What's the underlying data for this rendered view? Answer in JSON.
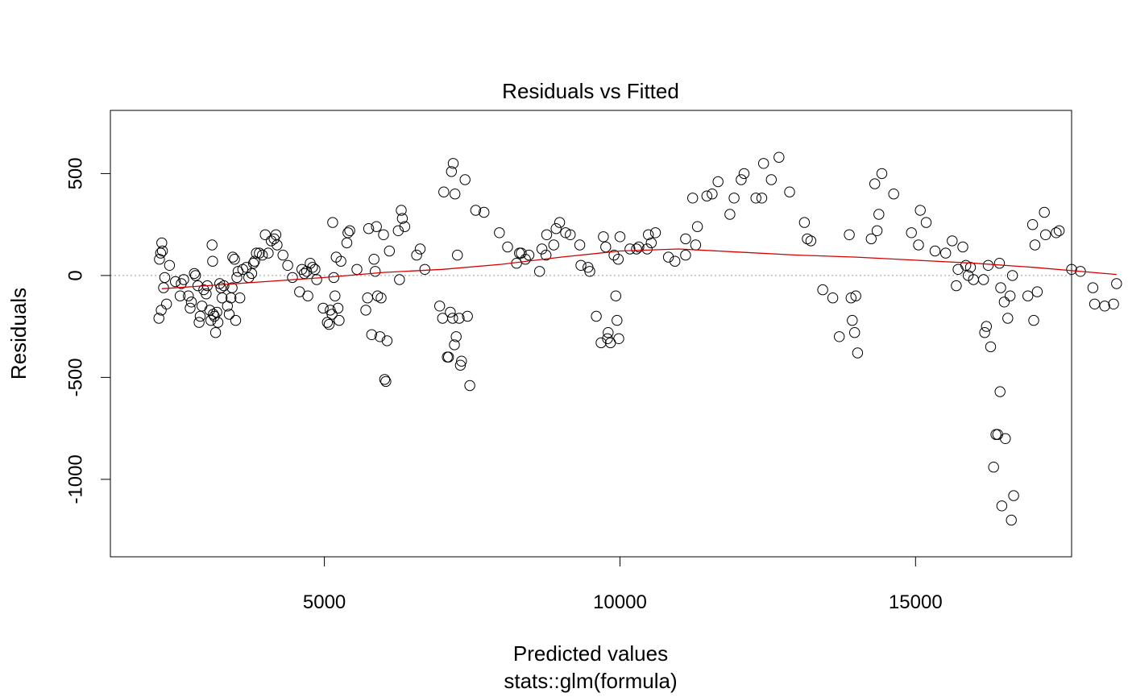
{
  "chart_data": {
    "type": "scatter",
    "title": "Residuals vs Fitted",
    "xlabel": "Predicted values",
    "subtitle": "stats::glm(formula)",
    "ylabel": "Residuals",
    "xlim": [
      1380,
      17640
    ],
    "ylim": [
      -1380,
      810
    ],
    "xticks": [
      5000,
      10000,
      15000
    ],
    "xtick_labels": [
      "5000",
      "10000",
      "15000"
    ],
    "yticks": [
      500,
      0,
      -500,
      -1000
    ],
    "ytick_labels": [
      "500",
      "0",
      "-500",
      "-1000"
    ],
    "reference_line": {
      "y": 0,
      "style": "dotted",
      "color": "#999999"
    },
    "point_color": "#000000",
    "smooth_color": "#d40000",
    "points": [
      [
        2250,
        160
      ],
      [
        2230,
        110
      ],
      [
        2210,
        80
      ],
      [
        2260,
        120
      ],
      [
        2300,
        -10
      ],
      [
        2330,
        -140
      ],
      [
        2280,
        -60
      ],
      [
        2240,
        -170
      ],
      [
        2200,
        -210
      ],
      [
        2380,
        50
      ],
      [
        2480,
        -30
      ],
      [
        2560,
        -100
      ],
      [
        2580,
        -40
      ],
      [
        2620,
        -20
      ],
      [
        2700,
        -100
      ],
      [
        2730,
        -160
      ],
      [
        2750,
        -130
      ],
      [
        2800,
        10
      ],
      [
        2820,
        0
      ],
      [
        2860,
        -50
      ],
      [
        2880,
        -230
      ],
      [
        2900,
        -200
      ],
      [
        2930,
        -150
      ],
      [
        2960,
        -70
      ],
      [
        3000,
        -90
      ],
      [
        3020,
        -50
      ],
      [
        3060,
        -170
      ],
      [
        3080,
        -220
      ],
      [
        3100,
        150
      ],
      [
        3110,
        70
      ],
      [
        3120,
        -190
      ],
      [
        3140,
        -200
      ],
      [
        3160,
        -280
      ],
      [
        3180,
        -180
      ],
      [
        3200,
        -230
      ],
      [
        3230,
        -40
      ],
      [
        3250,
        -60
      ],
      [
        3270,
        -110
      ],
      [
        3300,
        -50
      ],
      [
        3360,
        -150
      ],
      [
        3390,
        -190
      ],
      [
        3420,
        -110
      ],
      [
        3440,
        -60
      ],
      [
        3450,
        90
      ],
      [
        3480,
        80
      ],
      [
        3500,
        -220
      ],
      [
        3520,
        -10
      ],
      [
        3540,
        20
      ],
      [
        3570,
        -110
      ],
      [
        3620,
        30
      ],
      [
        3680,
        40
      ],
      [
        3720,
        -10
      ],
      [
        3770,
        10
      ],
      [
        3800,
        60
      ],
      [
        3820,
        70
      ],
      [
        3850,
        110
      ],
      [
        3900,
        110
      ],
      [
        3950,
        100
      ],
      [
        4000,
        200
      ],
      [
        4050,
        110
      ],
      [
        4100,
        170
      ],
      [
        4150,
        180
      ],
      [
        4180,
        200
      ],
      [
        4200,
        150
      ],
      [
        4300,
        100
      ],
      [
        4380,
        50
      ],
      [
        4460,
        -10
      ],
      [
        4580,
        -80
      ],
      [
        4620,
        30
      ],
      [
        4660,
        10
      ],
      [
        4700,
        20
      ],
      [
        4720,
        -100
      ],
      [
        4760,
        60
      ],
      [
        4800,
        40
      ],
      [
        4840,
        30
      ],
      [
        4870,
        -20
      ],
      [
        4980,
        -160
      ],
      [
        5050,
        -230
      ],
      [
        5080,
        -240
      ],
      [
        5100,
        -170
      ],
      [
        5130,
        -190
      ],
      [
        5140,
        260
      ],
      [
        5160,
        -10
      ],
      [
        5180,
        -100
      ],
      [
        5200,
        90
      ],
      [
        5230,
        -160
      ],
      [
        5250,
        -220
      ],
      [
        5280,
        70
      ],
      [
        5380,
        160
      ],
      [
        5400,
        210
      ],
      [
        5430,
        220
      ],
      [
        5550,
        30
      ],
      [
        5700,
        -170
      ],
      [
        5730,
        -110
      ],
      [
        5750,
        230
      ],
      [
        5800,
        -290
      ],
      [
        5840,
        80
      ],
      [
        5860,
        20
      ],
      [
        5880,
        240
      ],
      [
        5900,
        -100
      ],
      [
        5940,
        -300
      ],
      [
        5960,
        -110
      ],
      [
        6000,
        200
      ],
      [
        6020,
        -510
      ],
      [
        6040,
        -520
      ],
      [
        6060,
        -320
      ],
      [
        6100,
        120
      ],
      [
        6250,
        220
      ],
      [
        6270,
        -20
      ],
      [
        6300,
        320
      ],
      [
        6320,
        280
      ],
      [
        6360,
        240
      ],
      [
        6560,
        100
      ],
      [
        6620,
        130
      ],
      [
        6700,
        30
      ],
      [
        6950,
        -150
      ],
      [
        7000,
        -210
      ],
      [
        7020,
        410
      ],
      [
        7080,
        -400
      ],
      [
        7100,
        -400
      ],
      [
        7130,
        -180
      ],
      [
        7150,
        510
      ],
      [
        7170,
        -210
      ],
      [
        7180,
        550
      ],
      [
        7200,
        -340
      ],
      [
        7210,
        400
      ],
      [
        7230,
        -300
      ],
      [
        7250,
        100
      ],
      [
        7280,
        -210
      ],
      [
        7300,
        -440
      ],
      [
        7320,
        -420
      ],
      [
        7380,
        470
      ],
      [
        7420,
        -200
      ],
      [
        7460,
        -540
      ],
      [
        7560,
        320
      ],
      [
        7700,
        310
      ],
      [
        7960,
        210
      ],
      [
        8100,
        140
      ],
      [
        8250,
        60
      ],
      [
        8300,
        110
      ],
      [
        8330,
        110
      ],
      [
        8400,
        80
      ],
      [
        8460,
        100
      ],
      [
        8640,
        20
      ],
      [
        8680,
        130
      ],
      [
        8750,
        100
      ],
      [
        8760,
        200
      ],
      [
        8880,
        150
      ],
      [
        8920,
        230
      ],
      [
        8980,
        260
      ],
      [
        9080,
        210
      ],
      [
        9160,
        200
      ],
      [
        9320,
        150
      ],
      [
        9340,
        50
      ],
      [
        9460,
        40
      ],
      [
        9490,
        20
      ],
      [
        9600,
        -200
      ],
      [
        9680,
        -330
      ],
      [
        9720,
        190
      ],
      [
        9760,
        140
      ],
      [
        9790,
        -310
      ],
      [
        9800,
        -280
      ],
      [
        9840,
        -330
      ],
      [
        9900,
        100
      ],
      [
        9930,
        -100
      ],
      [
        9950,
        -220
      ],
      [
        9970,
        80
      ],
      [
        9980,
        -310
      ],
      [
        10000,
        190
      ],
      [
        10170,
        130
      ],
      [
        10280,
        130
      ],
      [
        10320,
        140
      ],
      [
        10460,
        130
      ],
      [
        10480,
        200
      ],
      [
        10530,
        160
      ],
      [
        10600,
        210
      ],
      [
        10820,
        90
      ],
      [
        10930,
        70
      ],
      [
        11110,
        180
      ],
      [
        11110,
        100
      ],
      [
        11230,
        380
      ],
      [
        11280,
        150
      ],
      [
        11310,
        240
      ],
      [
        11470,
        390
      ],
      [
        11560,
        400
      ],
      [
        11660,
        460
      ],
      [
        11860,
        300
      ],
      [
        11930,
        380
      ],
      [
        12050,
        470
      ],
      [
        12100,
        500
      ],
      [
        12300,
        380
      ],
      [
        12400,
        380
      ],
      [
        12430,
        550
      ],
      [
        12560,
        470
      ],
      [
        12690,
        580
      ],
      [
        12870,
        410
      ],
      [
        13120,
        260
      ],
      [
        13170,
        180
      ],
      [
        13230,
        170
      ],
      [
        13430,
        -70
      ],
      [
        13600,
        -110
      ],
      [
        13710,
        -300
      ],
      [
        13880,
        200
      ],
      [
        13910,
        -110
      ],
      [
        13930,
        -220
      ],
      [
        13970,
        -280
      ],
      [
        13990,
        -100
      ],
      [
        14020,
        -380
      ],
      [
        14250,
        180
      ],
      [
        14310,
        450
      ],
      [
        14350,
        220
      ],
      [
        14380,
        300
      ],
      [
        14430,
        500
      ],
      [
        14630,
        400
      ],
      [
        14930,
        210
      ],
      [
        15050,
        150
      ],
      [
        15080,
        320
      ],
      [
        15180,
        260
      ],
      [
        15330,
        120
      ],
      [
        15510,
        110
      ],
      [
        15620,
        170
      ],
      [
        15690,
        -50
      ],
      [
        15720,
        30
      ],
      [
        15800,
        140
      ],
      [
        15850,
        50
      ],
      [
        15890,
        0
      ],
      [
        15930,
        40
      ],
      [
        15980,
        -20
      ],
      [
        16150,
        -20
      ],
      [
        16170,
        -280
      ],
      [
        16200,
        -250
      ],
      [
        16230,
        50
      ],
      [
        16270,
        -350
      ],
      [
        16320,
        -940
      ],
      [
        16360,
        -780
      ],
      [
        16390,
        -780
      ],
      [
        16420,
        60
      ],
      [
        16430,
        -570
      ],
      [
        16440,
        -60
      ],
      [
        16460,
        -1130
      ],
      [
        16500,
        -130
      ],
      [
        16520,
        -800
      ],
      [
        16560,
        -210
      ],
      [
        16600,
        -100
      ],
      [
        16620,
        -1200
      ],
      [
        16640,
        0
      ],
      [
        16660,
        -1080
      ],
      [
        16900,
        -100
      ],
      [
        16980,
        250
      ],
      [
        17000,
        -220
      ],
      [
        17020,
        150
      ],
      [
        17060,
        -80
      ],
      [
        17180,
        310
      ],
      [
        17200,
        200
      ],
      [
        17380,
        210
      ],
      [
        17430,
        220
      ],
      [
        17640,
        30
      ],
      [
        17790,
        20
      ],
      [
        18000,
        -60
      ],
      [
        18030,
        -140
      ],
      [
        18200,
        -150
      ],
      [
        18350,
        -140
      ],
      [
        18400,
        -40
      ]
    ],
    "smooth": [
      [
        2250,
        -65
      ],
      [
        3000,
        -50
      ],
      [
        4000,
        -30
      ],
      [
        5000,
        -10
      ],
      [
        6000,
        15
      ],
      [
        7000,
        30
      ],
      [
        8000,
        55
      ],
      [
        9000,
        90
      ],
      [
        10000,
        120
      ],
      [
        11000,
        130
      ],
      [
        12000,
        115
      ],
      [
        13000,
        100
      ],
      [
        14000,
        90
      ],
      [
        15000,
        75
      ],
      [
        16000,
        60
      ],
      [
        17000,
        40
      ],
      [
        18000,
        15
      ],
      [
        18400,
        5
      ]
    ]
  }
}
